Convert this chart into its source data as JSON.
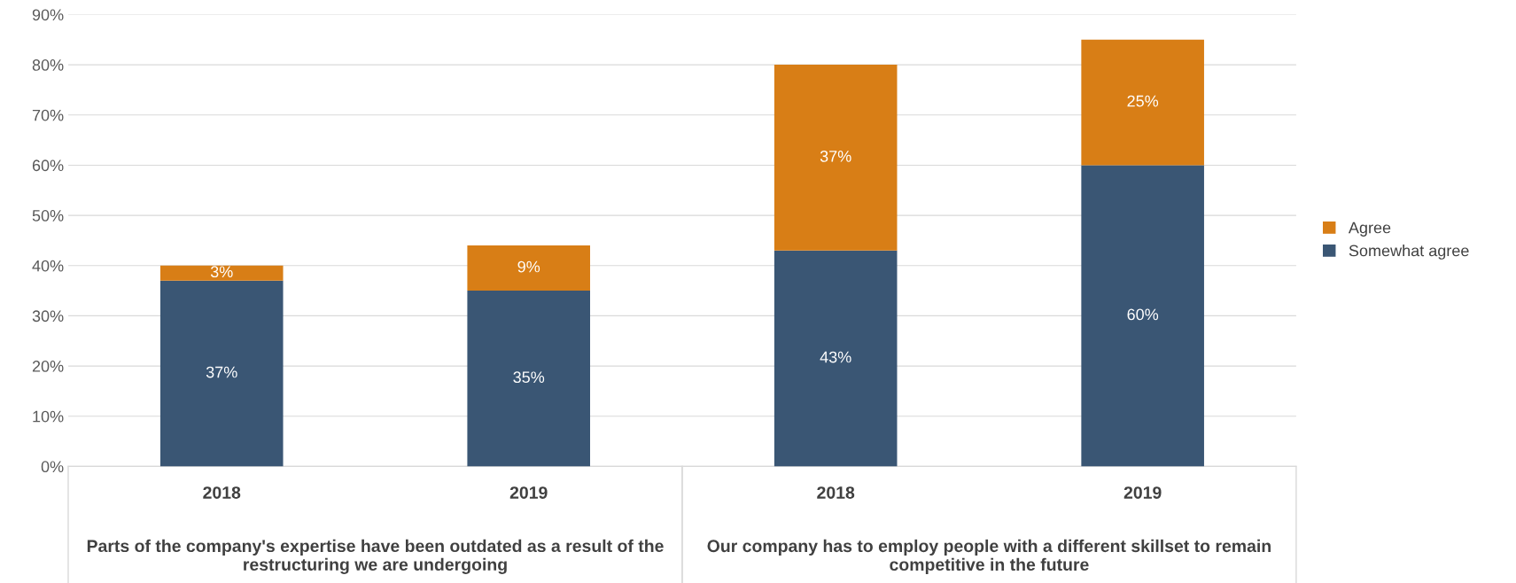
{
  "chart_data": {
    "type": "bar",
    "stacked": true,
    "categories": [
      "2018",
      "2019",
      "2018",
      "2019"
    ],
    "series": [
      {
        "name": "Somewhat agree",
        "color": "#3a5674",
        "values": [
          37,
          35,
          43,
          60
        ]
      },
      {
        "name": "Agree",
        "color": "#d87e16",
        "values": [
          3,
          9,
          37,
          25
        ]
      }
    ],
    "ylim": [
      0,
      90
    ],
    "yticks": [
      {
        "value": 0,
        "label": "0%"
      },
      {
        "value": 10,
        "label": "10%"
      },
      {
        "value": 20,
        "label": "20%"
      },
      {
        "value": 30,
        "label": "30%"
      },
      {
        "value": 40,
        "label": "40%"
      },
      {
        "value": 50,
        "label": "50%"
      },
      {
        "value": 60,
        "label": "60%"
      },
      {
        "value": 70,
        "label": "70%"
      },
      {
        "value": 80,
        "label": "80%"
      },
      {
        "value": 90,
        "label": "90%"
      }
    ],
    "value_labels": [
      [
        "37%",
        "35%",
        "43%",
        "60%"
      ],
      [
        "3%",
        "9%",
        "37%",
        "25%"
      ]
    ],
    "annotations": [
      "Parts of the company's expertise have been outdated as a result of the restructuring we are undergoing",
      "Our company has to employ people with a different skillset to remain competitive in the future"
    ],
    "grid": "y",
    "legend": "right"
  }
}
